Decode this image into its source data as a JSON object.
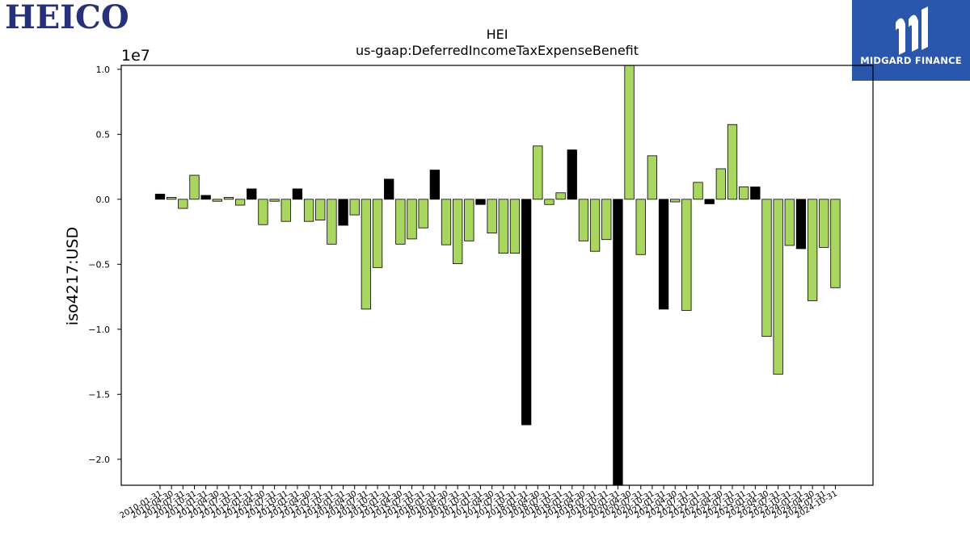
{
  "logos": {
    "left_company": "HEICO",
    "right_brand": "MIDGARD FINANCE"
  },
  "colors": {
    "bar_positive_change": "#a8d65f",
    "bar_negative_change": "#000000",
    "brand_blue": "#2a56ab",
    "heico_navy": "#27307a"
  },
  "chart_data": {
    "type": "bar",
    "title": "HEI",
    "subtitle": "us-gaap:DeferredIncomeTaxExpenseBenefit",
    "xlabel": "",
    "ylabel": "iso4217:USD",
    "y_multiplier_label": "1e7",
    "ylim": [
      -22000000,
      10300000
    ],
    "yticks": [
      -20000000,
      -15000000,
      -10000000,
      -5000000,
      0,
      5000000,
      10000000
    ],
    "ytick_labels": [
      "−2.0",
      "−1.5",
      "−1.0",
      "−0.5",
      "0.0",
      "0.5",
      "1.0"
    ],
    "grid": false,
    "legend": "none",
    "xtick_labels_shown": [
      "2010-01-31",
      "2010-04-30",
      "2010-07-31",
      "2010-10-31",
      "2011-01-31",
      "2011-04-30",
      "2011-07-31",
      "2011-10-31",
      "2012-01-31",
      "2012-04-30",
      "2012-07-31",
      "2012-10-31",
      "2013-01-31",
      "2013-04-30",
      "2013-07-31",
      "2013-10-31",
      "2014-01-31",
      "2014-04-30",
      "2014-07-31",
      "2014-10-31",
      "2015-01-31",
      "2015-04-30",
      "2015-07-31",
      "2015-10-31",
      "2016-01-31",
      "2016-04-30",
      "2016-07-31",
      "2016-10-31",
      "2017-01-31",
      "2017-04-30",
      "2017-07-31",
      "2017-10-31",
      "2018-01-31",
      "2018-04-30",
      "2018-07-31",
      "2018-10-31",
      "2019-01-31",
      "2019-04-30",
      "2019-07-31",
      "2019-10-31",
      "2020-01-31",
      "2020-04-30",
      "2020-07-31",
      "2020-10-31",
      "2021-01-31",
      "2021-04-30",
      "2021-07-31",
      "2021-10-31",
      "2022-01-31",
      "2022-04-30",
      "2022-07-31",
      "2022-10-31",
      "2023-01-31",
      "2023-04-30",
      "2023-07-31",
      "2023-10-31",
      "2024-01-31",
      "2024-04-30",
      "2024-07-31",
      "2024-10-31"
    ],
    "values": [
      400000,
      150000,
      -700000,
      1850000,
      300000,
      -150000,
      150000,
      -450000,
      800000,
      -1950000,
      -150000,
      -1700000,
      800000,
      -1700000,
      -1600000,
      -3450000,
      -2000000,
      -1200000,
      -8450000,
      -5250000,
      1550000,
      -3450000,
      -3050000,
      -2200000,
      2250000,
      -3500000,
      -4950000,
      -3200000,
      -400000,
      -2600000,
      -4150000,
      -4150000,
      -17350000,
      4100000,
      -400000,
      500000,
      3800000,
      -3200000,
      -4000000,
      -3100000,
      -22000000,
      10300000,
      -4250000,
      3350000,
      -8450000,
      -200000,
      -8550000,
      1300000,
      -350000,
      2350000,
      5750000,
      950000,
      950000,
      -10550000,
      -13450000,
      -3550000,
      -3800000,
      -7800000,
      -3700000,
      -6800000
    ],
    "bar_color_rule": "black where the value decreased from the previous bar but stayed positive or turned negative from a larger drop; green otherwise"
  }
}
